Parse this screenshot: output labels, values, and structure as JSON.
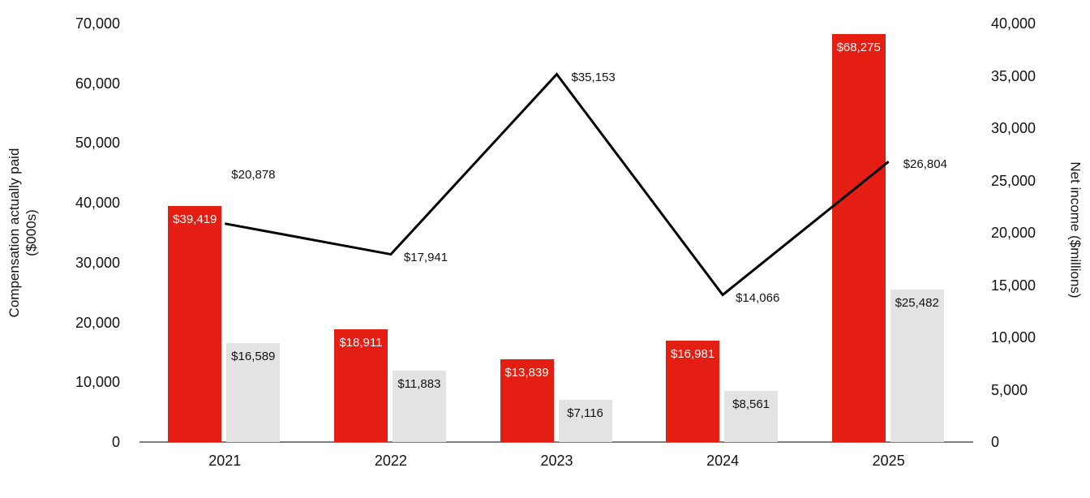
{
  "chart": {
    "left_axis_title_line1": "Compensation actually paid",
    "left_axis_title_line2": "($000s)",
    "right_axis_title": "Net income ($millions)"
  },
  "chart_data": {
    "type": "bar",
    "subtype": "grouped-bars-with-line-overlay",
    "categories": [
      "2021",
      "2022",
      "2023",
      "2024",
      "2025"
    ],
    "series": [
      {
        "name": "compensation-actually-paid",
        "type": "bar",
        "axis": "left",
        "color": "#e41e12",
        "label_color": "#ffffff",
        "values": [
          39419,
          18911,
          13839,
          16981,
          68275
        ]
      },
      {
        "name": "secondary-compensation",
        "type": "bar",
        "axis": "left",
        "color": "#e3e3e3",
        "label_color": "#131313",
        "values": [
          16589,
          11883,
          7116,
          8561,
          25482
        ]
      },
      {
        "name": "net-income",
        "type": "line",
        "axis": "right",
        "color": "#000000",
        "label_color": "#131313",
        "values": [
          20878,
          17941,
          35153,
          14066,
          26804
        ],
        "label_offsets": [
          {
            "dx": 8,
            "dy": -60
          },
          {
            "dx": 16,
            "dy": 4
          },
          {
            "dx": 18,
            "dy": 4
          },
          {
            "dx": 16,
            "dy": 4
          },
          {
            "dx": 18,
            "dy": 4
          }
        ]
      }
    ],
    "left_axis": {
      "label": "Compensation actually paid ($000s)",
      "min": 0,
      "max": 70000,
      "step": 10000
    },
    "right_axis": {
      "label": "Net income ($millions)",
      "min": 0,
      "max": 40000,
      "step": 5000
    },
    "value_prefix": "$",
    "grid": false,
    "legend": false,
    "title": ""
  }
}
